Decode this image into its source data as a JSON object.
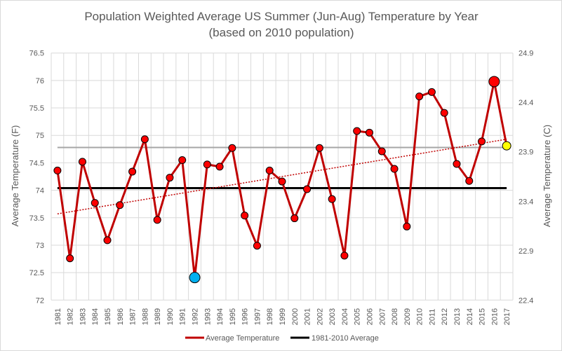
{
  "chart_data": {
    "type": "line",
    "title": "Population Weighted Average US Summer (Jun-Aug) Temperature by Year",
    "subtitle": "(based on 2010 population)",
    "ylabel": "Average Temperature (F)",
    "y2label": "Average Temperature (C)",
    "ylim": [
      72,
      76.5
    ],
    "yticks": [
      "72",
      "72.5",
      "73",
      "73.5",
      "74",
      "74.5",
      "75",
      "75.5",
      "76",
      "76.5"
    ],
    "y2lim": [
      22.4,
      24.9
    ],
    "y2ticks": [
      "22.4",
      "22.9",
      "23.4",
      "23.9",
      "24.4",
      "24.9"
    ],
    "grid": true,
    "legend_position": "bottom",
    "categories": [
      "1981",
      "1982",
      "1983",
      "1984",
      "1985",
      "1986",
      "1987",
      "1988",
      "1989",
      "1990",
      "1991",
      "1992",
      "1993",
      "1994",
      "1995",
      "1996",
      "1997",
      "1998",
      "1999",
      "2000",
      "2001",
      "2002",
      "2003",
      "2004",
      "2005",
      "2006",
      "2007",
      "2008",
      "2009",
      "2010",
      "2011",
      "2012",
      "2013",
      "2014",
      "2015",
      "2016",
      "2017"
    ],
    "series": [
      {
        "name": "Average Temperature",
        "color": "#c00000",
        "values": [
          74.36,
          72.76,
          74.52,
          73.77,
          73.09,
          73.73,
          74.34,
          74.93,
          73.46,
          74.23,
          74.55,
          72.41,
          74.47,
          74.43,
          74.77,
          73.54,
          72.99,
          74.36,
          74.16,
          73.49,
          74.02,
          74.77,
          73.84,
          72.81,
          75.08,
          75.05,
          74.71,
          74.39,
          73.34,
          75.71,
          75.79,
          75.41,
          74.48,
          74.17,
          74.89,
          75.98,
          74.81
        ],
        "highlights": {
          "1992": "#00b0f0",
          "2016": "#ff0000",
          "2017": "#ffff00"
        }
      },
      {
        "name": "1981-2010 Average",
        "color": "#000000",
        "value": 74.04
      }
    ],
    "reference_line": {
      "value": 74.78,
      "color": "#a6a6a6"
    },
    "trendline": {
      "start": 73.57,
      "end": 74.93,
      "color": "#c00000",
      "style": "dotted"
    }
  }
}
